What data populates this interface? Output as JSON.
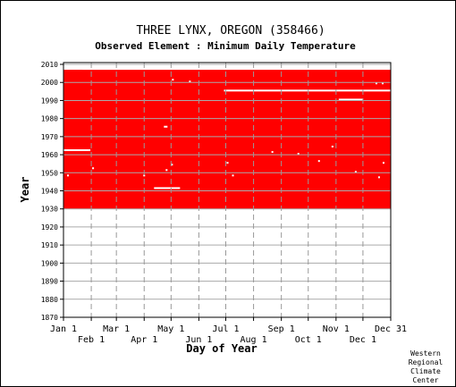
{
  "chart_data": {
    "type": "heatmap",
    "title": "THREE LYNX, OREGON   (358466)",
    "subtitle": "Observed Element : Minimum Daily Temperature",
    "xlabel": "Day of Year",
    "ylabel": "Year",
    "x_ticks_top_row": [
      "Jan 1",
      "Mar 1",
      "May 1",
      "Jul 1",
      "Sep 1",
      "Nov 1",
      "Dec 31"
    ],
    "x_ticks_bottom_row": [
      "Feb 1",
      "Apr 1",
      "Jun 1",
      "Aug 1",
      "Oct 1",
      "Dec 1"
    ],
    "x_tick_days": {
      "Jan 1": 1,
      "Feb 1": 32,
      "Mar 1": 60,
      "Apr 1": 91,
      "May 1": 121,
      "Jun 1": 152,
      "Jul 1": 182,
      "Aug 1": 213,
      "Sep 1": 244,
      "Oct 1": 274,
      "Nov 1": 305,
      "Dec 1": 335,
      "Dec 31": 365
    },
    "y_ticks": [
      2010,
      2000,
      1990,
      1980,
      1970,
      1960,
      1950,
      1940,
      1930,
      1920,
      1910,
      1900,
      1890,
      1880,
      1870
    ],
    "ylim": [
      1870,
      2011
    ],
    "xlim": [
      1,
      365
    ],
    "grid": true,
    "data_color": "#ff0000",
    "coverage": {
      "description": "Observed days (red) for each year",
      "filled_block": {
        "year_start": 1930,
        "year_end": 2006,
        "day_start": 1,
        "day_end": 365
      },
      "partial_top_year": {
        "year": 2006,
        "day_start": 1,
        "day_end": 21
      },
      "missing_segments": [
        {
          "year": 1995,
          "day_start": 180,
          "day_end": 365
        },
        {
          "year": 1990,
          "day_start": 308,
          "day_end": 334
        },
        {
          "year": 1962,
          "day_start": 1,
          "day_end": 30
        },
        {
          "year": 1941,
          "day_start": 102,
          "day_end": 130
        },
        {
          "year": 1975,
          "day_start": 113,
          "day_end": 116
        },
        {
          "year": 2001,
          "day_start": 122,
          "day_end": 123
        },
        {
          "year": 2000,
          "day_start": 141,
          "day_end": 142
        },
        {
          "year": 1999,
          "day_start": 349,
          "day_end": 350
        },
        {
          "year": 1999,
          "day_start": 356,
          "day_end": 357
        },
        {
          "year": 1948,
          "day_start": 5,
          "day_end": 6
        },
        {
          "year": 1952,
          "day_start": 33,
          "day_end": 34
        },
        {
          "year": 1948,
          "day_start": 90,
          "day_end": 91
        },
        {
          "year": 1951,
          "day_start": 115,
          "day_end": 116
        },
        {
          "year": 1954,
          "day_start": 121,
          "day_end": 122
        },
        {
          "year": 1955,
          "day_start": 183,
          "day_end": 184
        },
        {
          "year": 1948,
          "day_start": 189,
          "day_end": 190
        },
        {
          "year": 1961,
          "day_start": 233,
          "day_end": 234
        },
        {
          "year": 1960,
          "day_start": 262,
          "day_end": 263
        },
        {
          "year": 1956,
          "day_start": 285,
          "day_end": 286
        },
        {
          "year": 1964,
          "day_start": 300,
          "day_end": 301
        },
        {
          "year": 1950,
          "day_start": 326,
          "day_end": 327
        },
        {
          "year": 1955,
          "day_start": 357,
          "day_end": 358
        },
        {
          "year": 1947,
          "day_start": 352,
          "day_end": 353
        }
      ]
    }
  },
  "credit": [
    "Western",
    "Regional",
    "Climate",
    "Center"
  ]
}
